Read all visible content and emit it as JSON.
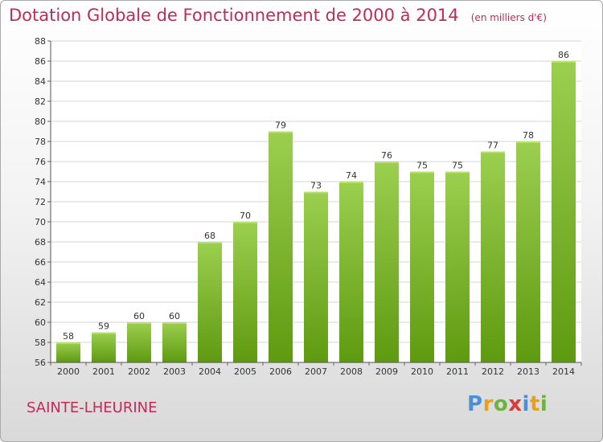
{
  "title": "Dotation Globale de Fonctionnement de 2000 à 2014",
  "unit_note": "(en milliers d'€)",
  "commune": "SAINTE-LHEURINE",
  "logo": {
    "letters": [
      "P",
      "r",
      "o",
      "x",
      "i",
      "t",
      "i"
    ],
    "colors": [
      "#4a90d9",
      "#e8a020",
      "#6cb33f",
      "#d93b3b",
      "#4a90d9",
      "#e8a020",
      "#6cb33f"
    ]
  },
  "colors": {
    "bar_top": "#9ccf4f",
    "bar_bottom": "#5e9a10",
    "title": "#c22a57"
  },
  "chart_data": {
    "type": "bar",
    "categories": [
      "2000",
      "2001",
      "2002",
      "2003",
      "2004",
      "2005",
      "2006",
      "2007",
      "2008",
      "2009",
      "2010",
      "2011",
      "2012",
      "2013",
      "2014"
    ],
    "values": [
      58,
      59,
      60,
      60,
      68,
      70,
      79,
      73,
      74,
      76,
      75,
      75,
      77,
      78,
      86
    ],
    "ylim": [
      56,
      88
    ],
    "yticks": [
      56,
      58,
      60,
      62,
      64,
      66,
      68,
      70,
      72,
      74,
      76,
      78,
      80,
      82,
      84,
      86,
      88
    ],
    "grid": true,
    "data_labels": true
  }
}
